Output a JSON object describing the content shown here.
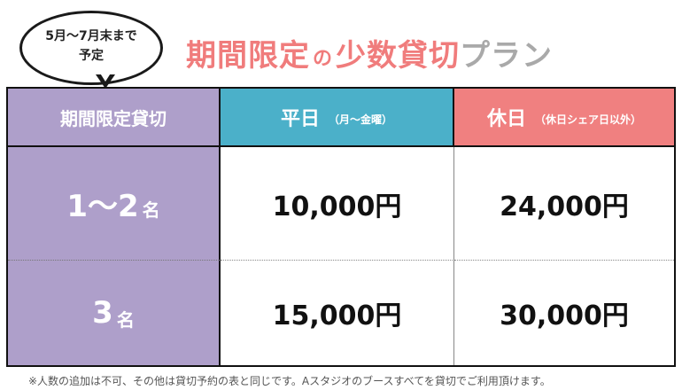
{
  "bubble": {
    "line1": "5月～7月末まで",
    "line2": "予定"
  },
  "title": {
    "part1": "期間限定",
    "part2": "の",
    "part3": "少数貸切",
    "part4": "プラン"
  },
  "table": {
    "header": {
      "col1": "期間限定貸切",
      "col2_main": "平日",
      "col2_sub": "（月～金曜）",
      "col3_main": "休日",
      "col3_sub": "（休日シェア日以外）"
    },
    "rows": [
      {
        "label_main": "1～2",
        "label_suffix": "名",
        "weekday": "10,000円",
        "holiday": "24,000円"
      },
      {
        "label_main": "3",
        "label_suffix": "名",
        "weekday": "15,000円",
        "holiday": "30,000円"
      }
    ]
  },
  "note": "※人数の追加は不可、その他は貸切予約の表と同じです。Aスタジオのブースすべてを貸切でご利用頂けます。",
  "colors": {
    "purple": "#ae9fca",
    "teal": "#4bb0c9",
    "salmon": "#f08080",
    "title_pink": "#f07c7c",
    "title_gray": "#a9a9a9"
  }
}
